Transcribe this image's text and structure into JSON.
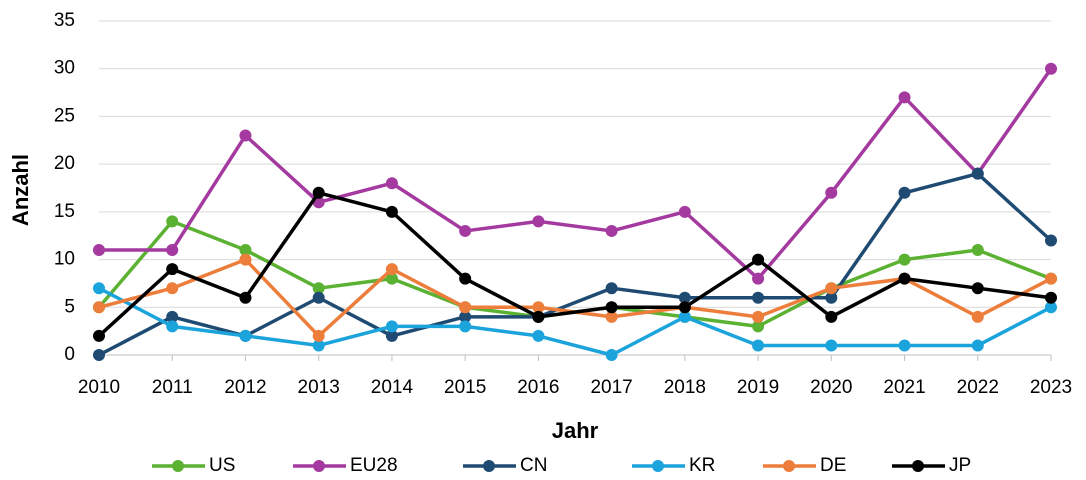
{
  "chart_data": {
    "type": "line",
    "x_label": "Jahr",
    "y_label": "Anzahl",
    "categories": [
      "2010",
      "2011",
      "2012",
      "2013",
      "2014",
      "2015",
      "2016",
      "2017",
      "2018",
      "2019",
      "2020",
      "2021",
      "2022",
      "2023"
    ],
    "series": [
      {
        "name": "US",
        "color": "#5bb131",
        "values": [
          5,
          14,
          11,
          7,
          8,
          5,
          4,
          5,
          4,
          3,
          7,
          10,
          11,
          8
        ]
      },
      {
        "name": "EU28",
        "color": "#a43a9f",
        "values": [
          11,
          11,
          23,
          16,
          18,
          13,
          14,
          13,
          15,
          8,
          17,
          27,
          19,
          30
        ]
      },
      {
        "name": "CN",
        "color": "#1f4b73",
        "values": [
          0,
          4,
          2,
          6,
          2,
          4,
          4,
          7,
          6,
          6,
          6,
          17,
          19,
          12
        ]
      },
      {
        "name": "KR",
        "color": "#1ba3dc",
        "values": [
          7,
          3,
          2,
          1,
          3,
          3,
          2,
          0,
          4,
          1,
          1,
          1,
          1,
          5
        ]
      },
      {
        "name": "DE",
        "color": "#ed7d3a",
        "values": [
          5,
          7,
          10,
          2,
          9,
          5,
          5,
          4,
          5,
          4,
          7,
          8,
          4,
          8
        ]
      },
      {
        "name": "JP",
        "color": "#000000",
        "values": [
          2,
          9,
          6,
          17,
          15,
          8,
          4,
          5,
          5,
          10,
          4,
          8,
          7,
          6
        ]
      }
    ],
    "ylim": [
      0,
      35
    ],
    "yticks": [
      0,
      5,
      10,
      15,
      20,
      25,
      30,
      35
    ],
    "grid": true,
    "legend": "bottom"
  }
}
